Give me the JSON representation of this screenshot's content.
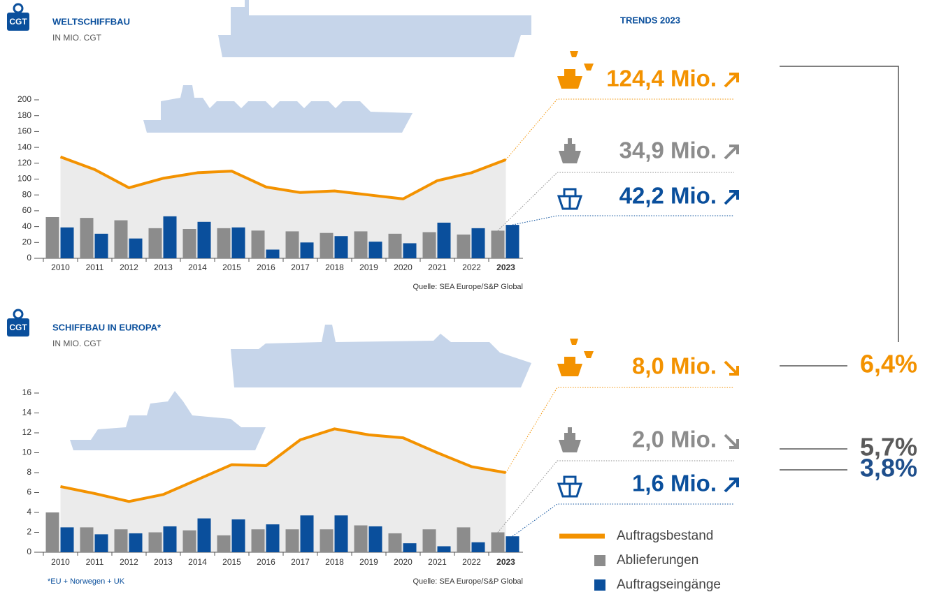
{
  "badge": "CGT",
  "trends_title": "TRENDS 2023",
  "chart_data": [
    {
      "type": "bar",
      "title": "WELTSCHIFFBAU",
      "subtitle": "IN MIO. CGT",
      "source": "Quelle: SEA Europe/S&P Global",
      "categories": [
        "2010",
        "2011",
        "2012",
        "2013",
        "2014",
        "2015",
        "2016",
        "2017",
        "2018",
        "2019",
        "2020",
        "2021",
        "2022",
        "2023"
      ],
      "ylim": [
        0,
        200
      ],
      "yticks": [
        0,
        20,
        40,
        60,
        80,
        100,
        120,
        140,
        160,
        180,
        200
      ],
      "series": [
        {
          "type": "line",
          "color": "#f39200",
          "values": [
            128,
            112,
            89,
            101,
            108,
            110,
            90,
            83,
            85,
            80,
            75,
            98,
            108,
            124.4
          ]
        },
        {
          "color": "#8c8c8c",
          "values": [
            52,
            51,
            48,
            38,
            37,
            38,
            35,
            34,
            32,
            34,
            31,
            33,
            30,
            34.9
          ]
        },
        {
          "color": "#0a4f9c",
          "values": [
            39,
            31,
            25,
            53,
            46,
            39,
            11,
            20,
            28,
            21,
            19,
            45,
            38,
            42.2
          ]
        }
      ],
      "trends": [
        {
          "text": "124,4 Mio.",
          "color": "#f39200"
        },
        {
          "text": "34,9 Mio.",
          "color": "#8c8c8c"
        },
        {
          "text": "42,2 Mio.",
          "color": "#0a4f9c"
        }
      ]
    },
    {
      "type": "bar",
      "title": "SCHIFFBAU IN EUROPA*",
      "subtitle": "IN MIO. CGT",
      "source": "Quelle: SEA Europe/S&P Global",
      "footnote": "*EU + Norwegen + UK",
      "categories": [
        "2010",
        "2011",
        "2012",
        "2013",
        "2014",
        "2015",
        "2016",
        "2017",
        "2018",
        "2019",
        "2020",
        "2021",
        "2022",
        "2023"
      ],
      "ylim": [
        0,
        16
      ],
      "yticks": [
        0,
        2,
        4,
        6,
        8,
        10,
        12,
        14,
        16
      ],
      "series": [
        {
          "type": "line",
          "name": "Auftragsbestand",
          "color": "#f39200",
          "values": [
            6.6,
            5.9,
            5.1,
            5.8,
            7.3,
            8.8,
            8.7,
            11.3,
            12.4,
            11.8,
            11.5,
            10.0,
            8.6,
            8.0
          ]
        },
        {
          "name": "Ablieferungen",
          "color": "#8c8c8c",
          "values": [
            4.0,
            2.5,
            2.3,
            2.0,
            2.2,
            1.7,
            2.3,
            2.3,
            2.3,
            2.7,
            1.9,
            2.3,
            2.5,
            2.0
          ]
        },
        {
          "name": "Auftragseingänge",
          "color": "#0a4f9c",
          "values": [
            2.5,
            1.8,
            1.9,
            2.6,
            3.4,
            3.3,
            2.8,
            3.7,
            3.7,
            2.6,
            0.9,
            0.6,
            1.0,
            1.6
          ]
        }
      ],
      "trends": [
        {
          "text": "8,0 Mio.",
          "color": "#f39200",
          "share": "6,4%"
        },
        {
          "text": "2,0 Mio.",
          "color": "#8c8c8c",
          "share": "5,7%"
        },
        {
          "text": "1,6 Mio.",
          "color": "#0a4f9c",
          "share": "3,8%"
        }
      ]
    }
  ]
}
